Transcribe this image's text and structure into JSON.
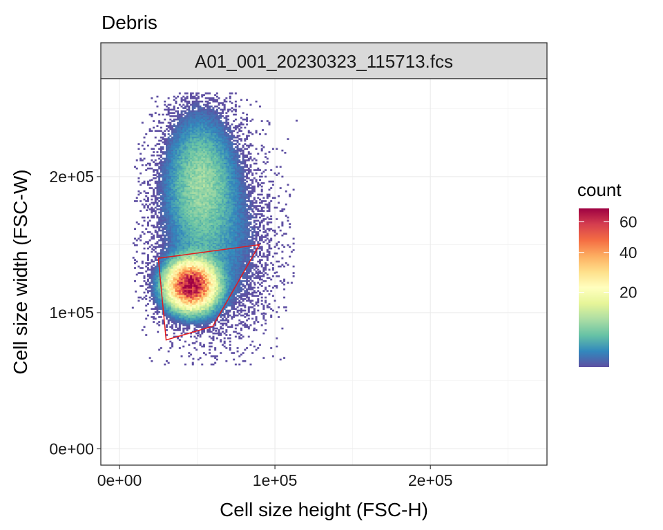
{
  "chart_data": {
    "type": "heatmap",
    "title": "Debris",
    "panel_label": "A01_001_20230323_115713.fcs",
    "xlabel": "Cell size height (FSC-H)",
    "ylabel": "Cell size width (FSC-W)",
    "xlim": [
      -12000,
      275000
    ],
    "ylim": [
      -12000,
      272000
    ],
    "x_ticks": [
      {
        "value": 0,
        "label": "0e+00"
      },
      {
        "value": 100000,
        "label": "1e+05"
      },
      {
        "value": 200000,
        "label": "2e+05"
      }
    ],
    "y_ticks": [
      {
        "value": 0,
        "label": "0e+00"
      },
      {
        "value": 100000,
        "label": "1e+05"
      },
      {
        "value": 200000,
        "label": "2e+05"
      }
    ],
    "grid": true,
    "legend": {
      "title": "count",
      "position": "right",
      "scale": "sqrt",
      "range": [
        1,
        70
      ],
      "breaks": [
        {
          "value": 20,
          "label": "20"
        },
        {
          "value": 40,
          "label": "40"
        },
        {
          "value": 60,
          "label": "60"
        }
      ],
      "palette": [
        "#5E4FA2",
        "#3288BD",
        "#66C2A5",
        "#ABDDA4",
        "#E6F598",
        "#FFFFBF",
        "#FEE08B",
        "#FDAE61",
        "#F46D43",
        "#D53E4F",
        "#9E0142"
      ]
    },
    "density_clusters": [
      {
        "center": [
          46000,
          120000
        ],
        "spread": [
          9000,
          10000
        ],
        "peak_count": 68,
        "description": "main population"
      },
      {
        "center": [
          52000,
          198000
        ],
        "spread": [
          13000,
          28000
        ],
        "peak_count": 8,
        "description": "upper diffuse population"
      },
      {
        "center": [
          60000,
          150000
        ],
        "spread": [
          20000,
          35000
        ],
        "peak_count": 3,
        "description": "sparse background"
      }
    ],
    "gate": {
      "color": "#E31A1C",
      "vertices": [
        [
          25000,
          140000
        ],
        [
          90000,
          150000
        ],
        [
          60000,
          90000
        ],
        [
          30000,
          80000
        ]
      ]
    }
  }
}
